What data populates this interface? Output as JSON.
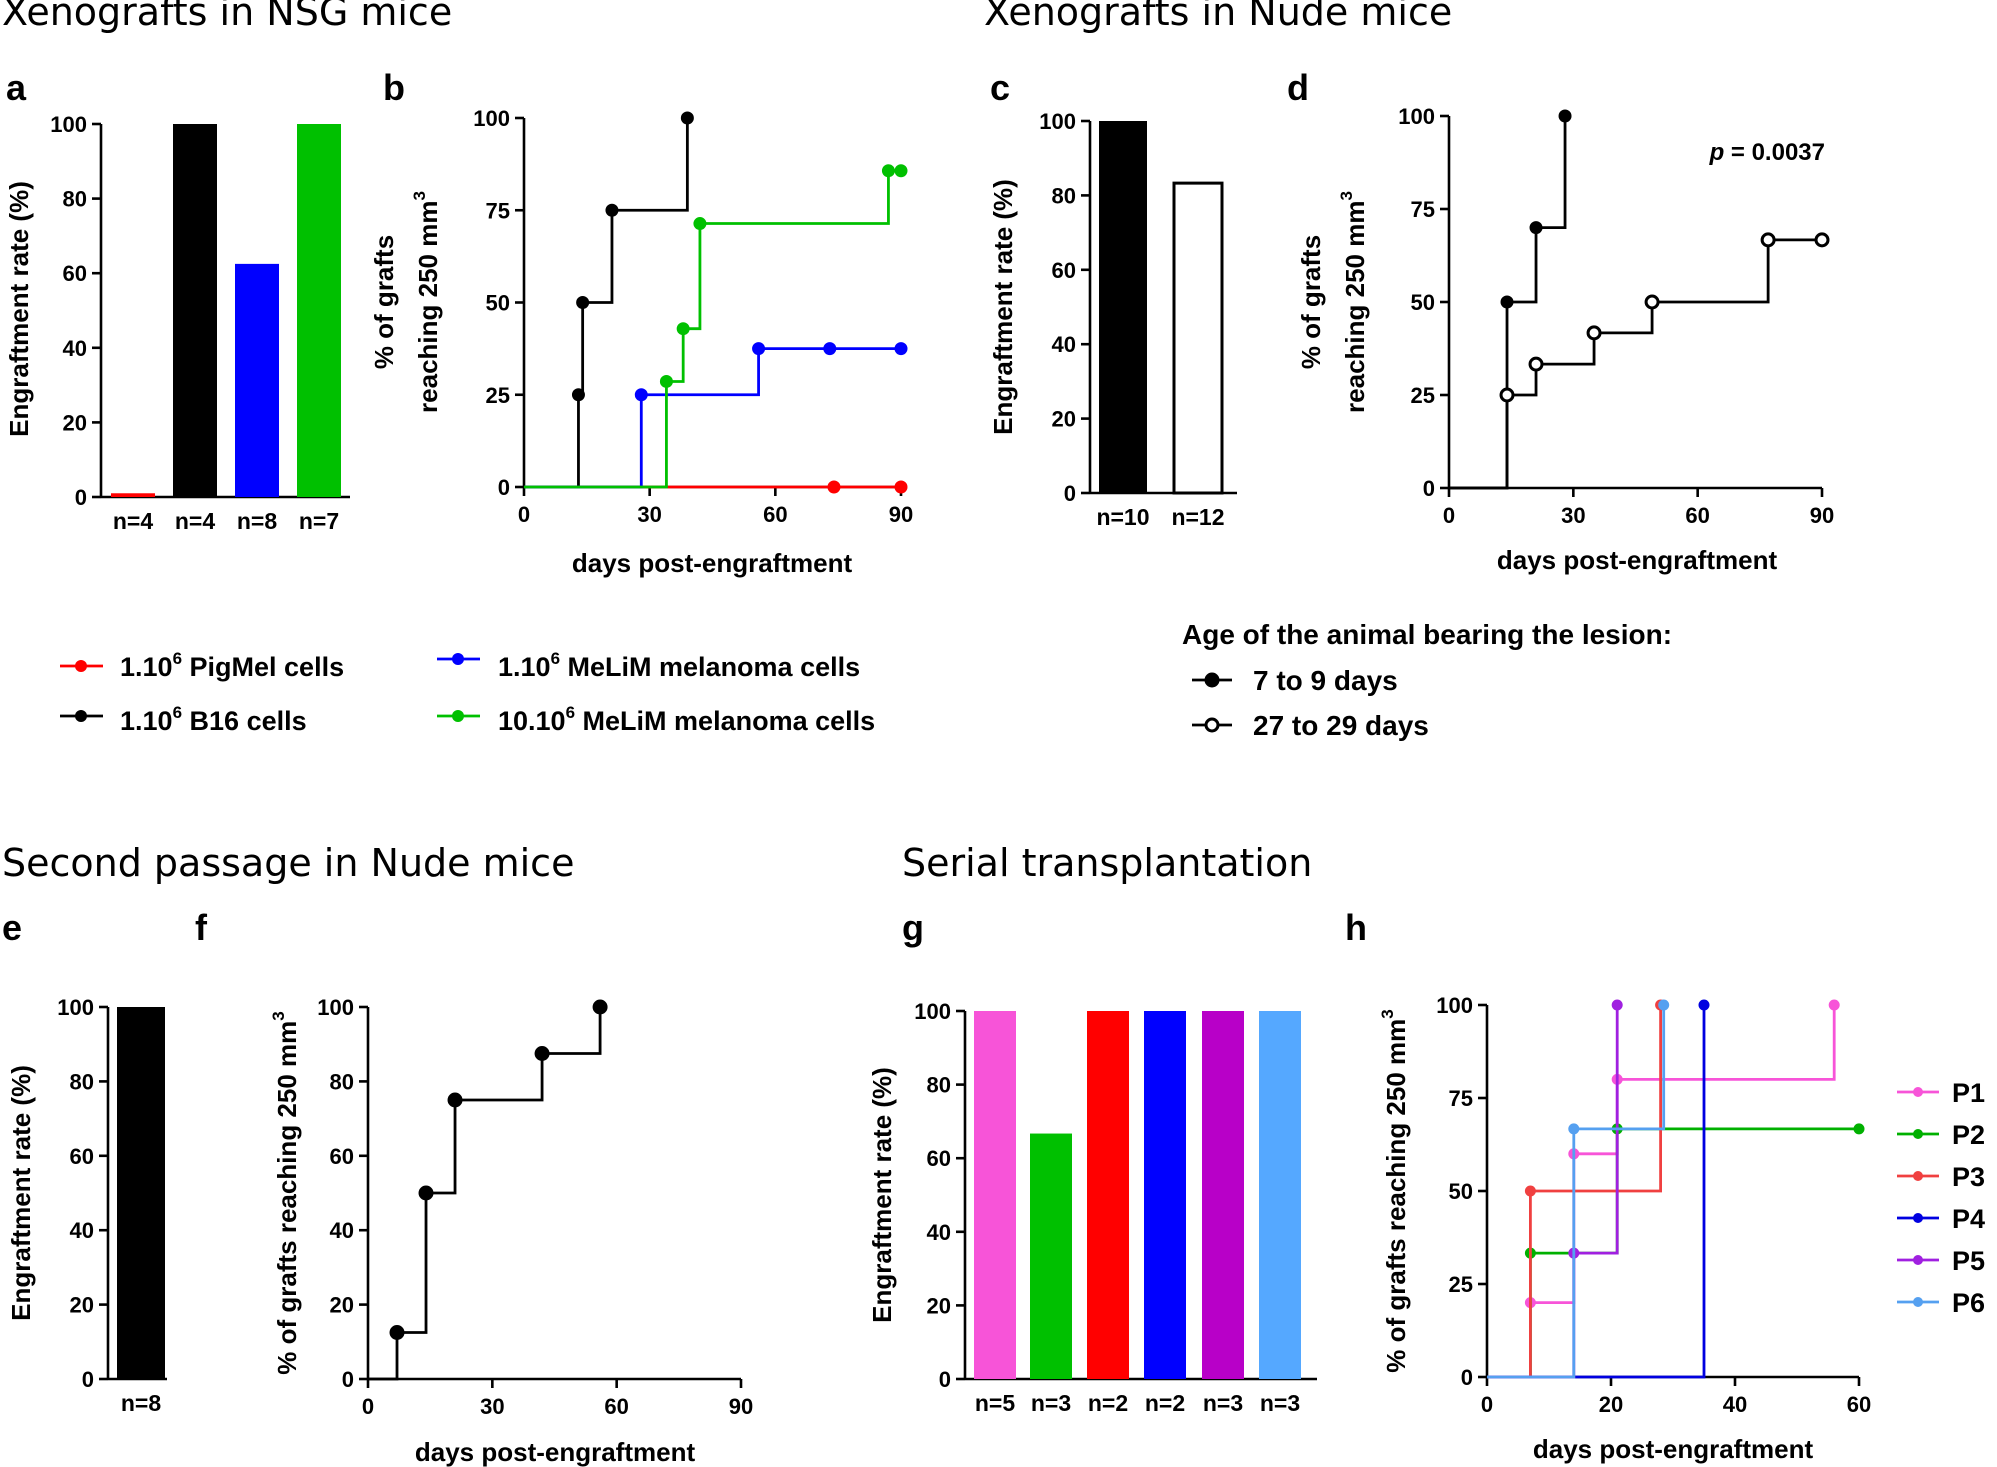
{
  "sections": {
    "nsg": "Xenografts in NSG mice",
    "nude": "Xenografts in Nude mice",
    "second": "Second passage in Nude mice",
    "serial": "Serial transplantation"
  },
  "legend_top": {
    "items": [
      {
        "pre": "1.10",
        "sup": "6",
        "post": " PigMel cells",
        "color": "#ff0000",
        "marker": "filled"
      },
      {
        "pre": "1.10",
        "sup": "6",
        "post": " B16 cells",
        "color": "#000000",
        "marker": "filled"
      },
      {
        "pre": "1.10",
        "sup": "6",
        "post": " MeLiM melanoma cells",
        "color": "#0000ff",
        "marker": "filled"
      },
      {
        "pre": "10.10",
        "sup": "6",
        "post": " MeLiM melanoma cells",
        "color": "#00c000",
        "marker": "filled"
      }
    ]
  },
  "legend_age": {
    "title": "Age of the animal bearing the lesion:",
    "items": [
      {
        "label": "7 to 9 days",
        "color": "#000000",
        "marker": "filled"
      },
      {
        "label": "27 to 29 days",
        "color": "#000000",
        "marker": "open"
      }
    ]
  },
  "chart_data": [
    {
      "panel": "a",
      "type": "bar",
      "ylabel": "Engraftment rate (%)",
      "ylim": [
        0,
        100
      ],
      "yticks": [
        0,
        20,
        40,
        60,
        80,
        100
      ],
      "categories": [
        "n=4",
        "n=4",
        "n=8",
        "n=7"
      ],
      "values": [
        1,
        100,
        62.5,
        100
      ],
      "colors": [
        "#ff0000",
        "#000000",
        "#0000ff",
        "#00c000"
      ],
      "outline": [
        false,
        false,
        false,
        false
      ]
    },
    {
      "panel": "b",
      "type": "line",
      "step": true,
      "ylabel": "% of grafts reaching 250 mm",
      "ylabel_sup": "3",
      "xlabel": "days post-engraftment",
      "xlim": [
        0,
        90
      ],
      "xticks": [
        0,
        30,
        60,
        90
      ],
      "ylim": [
        0,
        100
      ],
      "yticks": [
        0,
        25,
        50,
        75,
        100
      ],
      "series": [
        {
          "name": "PigMel",
          "color": "#ff0000",
          "marker": "filled",
          "x": [
            0,
            74,
            90
          ],
          "y": [
            0,
            0,
            0
          ],
          "censor": [
            74,
            90
          ]
        },
        {
          "name": "B16",
          "color": "#000000",
          "marker": "filled",
          "x": [
            0,
            13,
            14,
            21,
            39
          ],
          "y": [
            0,
            25,
            50,
            75,
            100
          ],
          "censor": []
        },
        {
          "name": "MeLiM 1.10^6",
          "color": "#0000ff",
          "marker": "filled",
          "x": [
            0,
            28,
            56,
            73,
            90
          ],
          "y": [
            0,
            25,
            37.5,
            37.5,
            37.5
          ],
          "censor": [
            73,
            90
          ]
        },
        {
          "name": "MeLiM 10.10^6",
          "color": "#00c000",
          "marker": "filled",
          "x": [
            0,
            34,
            38,
            42,
            87,
            90
          ],
          "y": [
            0,
            28.6,
            42.9,
            71.4,
            85.7,
            85.7
          ],
          "censor": [
            90
          ]
        }
      ]
    },
    {
      "panel": "c",
      "type": "bar",
      "ylabel": "Engraftment rate (%)",
      "ylim": [
        0,
        100
      ],
      "yticks": [
        0,
        20,
        40,
        60,
        80,
        100
      ],
      "categories": [
        "n=10",
        "n=12"
      ],
      "values": [
        100,
        83.3
      ],
      "colors": [
        "#000000",
        "#ffffff"
      ],
      "outline": [
        false,
        true
      ]
    },
    {
      "panel": "d",
      "type": "line",
      "step": true,
      "ylabel": "% of grafts reaching 250 mm",
      "ylabel_sup": "3",
      "xlabel": "days post-engraftment",
      "xlim": [
        0,
        90
      ],
      "xticks": [
        0,
        30,
        60,
        90
      ],
      "ylim": [
        0,
        100
      ],
      "yticks": [
        0,
        25,
        50,
        75,
        100
      ],
      "annotation": {
        "pre": "p",
        "post": " = 0.0037"
      },
      "series": [
        {
          "name": "7 to 9 days",
          "color": "#000000",
          "marker": "filled",
          "x": [
            0,
            14,
            21,
            28
          ],
          "y": [
            0,
            50,
            70,
            100
          ],
          "censor": []
        },
        {
          "name": "27 to 29 days",
          "color": "#000000",
          "marker": "open",
          "x": [
            0,
            14,
            21,
            35,
            49,
            77,
            90
          ],
          "y": [
            0,
            25,
            33.3,
            41.7,
            50,
            66.7,
            66.7
          ],
          "censor": [
            90
          ]
        }
      ]
    },
    {
      "panel": "e",
      "type": "bar",
      "ylabel": "Engraftment rate (%)",
      "ylim": [
        0,
        100
      ],
      "yticks": [
        0,
        20,
        40,
        60,
        80,
        100
      ],
      "categories": [
        "n=8"
      ],
      "values": [
        100
      ],
      "colors": [
        "#000000"
      ],
      "outline": [
        false
      ]
    },
    {
      "panel": "f",
      "type": "line",
      "step": true,
      "ylabel": "% of grafts reaching 250 mm",
      "ylabel_sup": "3",
      "xlabel": "days post-engraftment",
      "xlim": [
        0,
        90
      ],
      "xticks": [
        0,
        30,
        60,
        90
      ],
      "ylim": [
        0,
        100
      ],
      "yticks": [
        0,
        20,
        40,
        60,
        80,
        100
      ],
      "series": [
        {
          "name": "second passage",
          "color": "#000000",
          "marker": "filled",
          "x": [
            0,
            7,
            14,
            21,
            42,
            56
          ],
          "y": [
            0,
            12.5,
            50,
            75,
            87.5,
            100
          ],
          "censor": []
        }
      ]
    },
    {
      "panel": "g",
      "type": "bar",
      "ylabel": "Engraftment rate (%)",
      "ylim": [
        0,
        100
      ],
      "yticks": [
        0,
        20,
        40,
        60,
        80,
        100
      ],
      "categories": [
        "n=5",
        "n=3",
        "n=2",
        "n=2",
        "n=3",
        "n=3"
      ],
      "values": [
        100,
        66.7,
        100,
        100,
        100,
        100
      ],
      "colors": [
        "#f754d8",
        "#00c000",
        "#ff0000",
        "#0000ff",
        "#b800c8",
        "#55a8ff"
      ],
      "outline": [
        false,
        false,
        false,
        false,
        false,
        false
      ]
    },
    {
      "panel": "h",
      "type": "line",
      "step": true,
      "ylabel": "% of grafts reaching 250 mm",
      "ylabel_sup": "3",
      "xlabel": "days post-engraftment",
      "xlim": [
        0,
        60
      ],
      "xticks": [
        0,
        20,
        40,
        60
      ],
      "ylim": [
        0,
        100
      ],
      "yticks": [
        0,
        25,
        50,
        75,
        100
      ],
      "series": [
        {
          "name": "P1",
          "color": "#f754d8",
          "marker": "filled",
          "x": [
            0,
            7,
            14,
            21,
            56
          ],
          "y": [
            0,
            20,
            60,
            80,
            100
          ],
          "censor": []
        },
        {
          "name": "P2",
          "color": "#00b000",
          "marker": "filled",
          "x": [
            0,
            7,
            21,
            60
          ],
          "y": [
            0,
            33.3,
            66.7,
            66.7
          ],
          "censor": [
            60
          ]
        },
        {
          "name": "P3",
          "color": "#f04040",
          "marker": "filled",
          "x": [
            0,
            7,
            28
          ],
          "y": [
            0,
            50,
            100
          ],
          "censor": []
        },
        {
          "name": "P4",
          "color": "#0000e0",
          "marker": "filled",
          "x": [
            0,
            35
          ],
          "y": [
            0,
            100
          ],
          "censor": []
        },
        {
          "name": "P5",
          "color": "#a020e0",
          "marker": "filled",
          "x": [
            0,
            14,
            21
          ],
          "y": [
            0,
            33.3,
            100
          ],
          "censor": []
        },
        {
          "name": "P6",
          "color": "#55a0f0",
          "marker": "filled",
          "x": [
            0,
            14,
            28.5
          ],
          "y": [
            0,
            66.7,
            100
          ],
          "censor": []
        }
      ],
      "legend": [
        "P1",
        "P2",
        "P3",
        "P4",
        "P5",
        "P6"
      ]
    }
  ]
}
